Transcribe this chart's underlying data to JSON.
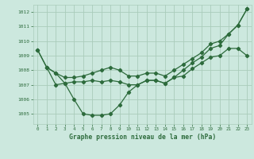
{
  "title": "Graphe pression niveau de la mer (hPa)",
  "bg_color": "#cce8de",
  "grid_color": "#aaccbb",
  "line_color": "#2d6b3c",
  "xlim": [
    -0.5,
    23.5
  ],
  "ylim": [
    1004.3,
    1012.5
  ],
  "yticks": [
    1005,
    1006,
    1007,
    1008,
    1009,
    1010,
    1011,
    1012
  ],
  "xticks": [
    0,
    1,
    2,
    3,
    4,
    5,
    6,
    7,
    8,
    9,
    10,
    11,
    12,
    13,
    14,
    15,
    16,
    17,
    18,
    19,
    20,
    21,
    22,
    23
  ],
  "line1": {
    "x": [
      0,
      1,
      2,
      3,
      4,
      5,
      6,
      7,
      8,
      9,
      10,
      11,
      12,
      13,
      14,
      15,
      16,
      17,
      18,
      19,
      20,
      21,
      22,
      23
    ],
    "y": [
      1009.4,
      1008.2,
      1007.8,
      1007.1,
      1007.2,
      1007.2,
      1007.3,
      1007.2,
      1007.3,
      1007.2,
      1007.0,
      1007.0,
      1007.3,
      1007.3,
      1007.1,
      1007.5,
      1007.6,
      1008.1,
      1008.5,
      1008.9,
      1009.0,
      1009.5,
      1009.5,
      1009.0
    ]
  },
  "line2": {
    "x": [
      0,
      1,
      2,
      3,
      4,
      5,
      6,
      7,
      8,
      9,
      10,
      11,
      12,
      13,
      14,
      15,
      16,
      17,
      18,
      19,
      20,
      21,
      22,
      23
    ],
    "y": [
      1009.4,
      1008.2,
      1007.8,
      1007.5,
      1007.5,
      1007.6,
      1007.8,
      1008.0,
      1008.2,
      1008.0,
      1007.6,
      1007.6,
      1007.8,
      1007.8,
      1007.6,
      1008.0,
      1008.4,
      1008.8,
      1009.2,
      1009.8,
      1010.0,
      1010.5,
      1011.1,
      1012.2
    ]
  },
  "line3": {
    "x": [
      1,
      2,
      3,
      4,
      5,
      6,
      7,
      8,
      9,
      10,
      11,
      12,
      13,
      14,
      15,
      16,
      17,
      18,
      19,
      20,
      21,
      22,
      23
    ],
    "y": [
      1008.2,
      1007.0,
      1007.1,
      1006.0,
      1005.0,
      1004.9,
      1004.9,
      1005.0,
      1005.6,
      1006.5,
      1007.0,
      1007.3,
      1007.3,
      1007.1,
      1007.5,
      1008.0,
      1008.5,
      1008.9,
      1009.5,
      1009.7,
      1010.5,
      1011.1,
      1012.2
    ]
  }
}
